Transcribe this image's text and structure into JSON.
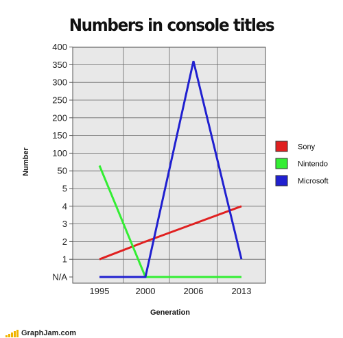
{
  "chart_data": {
    "type": "line",
    "title": "Numbers in console titles",
    "xlabel": "Generation",
    "ylabel": "Number",
    "categories": [
      "1995",
      "2000",
      "2006",
      "2013"
    ],
    "y_tick_labels": [
      "N/A",
      "1",
      "2",
      "3",
      "4",
      "5",
      "50",
      "100",
      "150",
      "200",
      "250",
      "300",
      "350",
      "400"
    ],
    "y_scale": "non-uniform categorical: N/A, 1, 2, 3, 4, 5 then 50 to 400 in steps of 50",
    "grid": true,
    "legend_placement": "right",
    "series": [
      {
        "name": "Sony",
        "color": "#e02020",
        "values": [
          1,
          2,
          3,
          4
        ]
      },
      {
        "name": "Nintendo",
        "color": "#33ee33",
        "values": [
          65,
          "N/A",
          "N/A",
          "N/A"
        ]
      },
      {
        "name": "Microsoft",
        "color": "#2020d0",
        "values": [
          "N/A",
          "N/A",
          360,
          1
        ]
      }
    ]
  },
  "footer": {
    "site": "GraphJam.com"
  }
}
